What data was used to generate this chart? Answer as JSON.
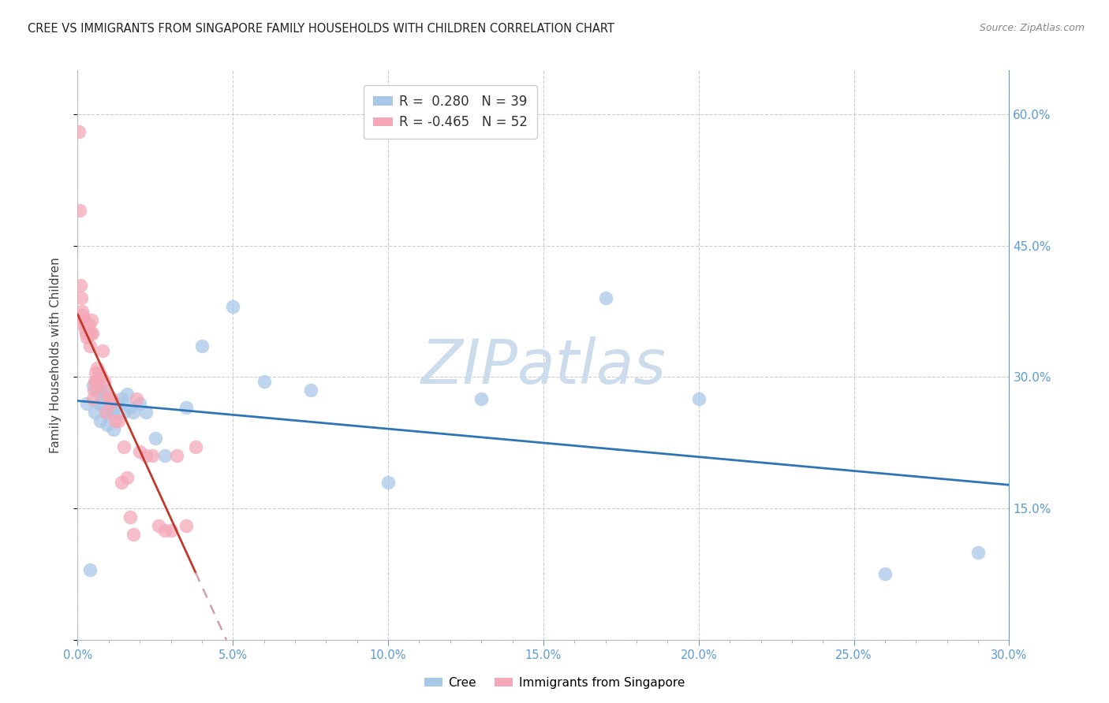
{
  "title": "CREE VS IMMIGRANTS FROM SINGAPORE FAMILY HOUSEHOLDS WITH CHILDREN CORRELATION CHART",
  "source": "Source: ZipAtlas.com",
  "ylabel": "Family Households with Children",
  "xlim": [
    0.0,
    30.0
  ],
  "ylim": [
    0.0,
    65.0
  ],
  "cree_color": "#a8c8e8",
  "singapore_color": "#f4a8b8",
  "cree_line_color": "#2e75b6",
  "singapore_line_color": "#c0392b",
  "extrapolation_color": "#d0a0a8",
  "watermark": "ZIPatlas",
  "watermark_color": "#ccdcec",
  "background_color": "#ffffff",
  "grid_color": "#cccccc",
  "axis_color": "#5b9bd5",
  "title_color": "#222222",
  "source_color": "#888888",
  "legend_r1": "R =  0.280",
  "legend_n1": "N = 39",
  "legend_r2": "R = -0.465",
  "legend_n2": "N = 52",
  "cree_label": "Cree",
  "singapore_label": "Immigrants from Singapore",
  "cree_points_x": [
    0.3,
    0.4,
    0.5,
    0.55,
    0.6,
    0.65,
    0.7,
    0.72,
    0.75,
    0.8,
    0.85,
    0.9,
    0.95,
    1.0,
    1.05,
    1.1,
    1.15,
    1.2,
    1.3,
    1.4,
    1.5,
    1.6,
    1.7,
    1.8,
    2.0,
    2.2,
    2.5,
    2.8,
    3.5,
    4.0,
    5.0,
    6.0,
    7.5,
    10.0,
    13.0,
    17.0,
    20.0,
    26.0,
    29.0
  ],
  "cree_points_y": [
    27.0,
    8.0,
    29.0,
    26.0,
    28.5,
    29.0,
    27.0,
    25.0,
    28.0,
    27.0,
    28.5,
    26.0,
    24.5,
    27.5,
    27.0,
    26.0,
    24.0,
    26.5,
    27.0,
    27.5,
    26.0,
    28.0,
    26.5,
    26.0,
    27.0,
    26.0,
    23.0,
    21.0,
    26.5,
    33.5,
    38.0,
    29.5,
    28.5,
    18.0,
    27.5,
    39.0,
    27.5,
    7.5,
    10.0
  ],
  "singapore_points_x": [
    0.05,
    0.07,
    0.1,
    0.12,
    0.14,
    0.16,
    0.18,
    0.2,
    0.22,
    0.25,
    0.27,
    0.3,
    0.32,
    0.35,
    0.37,
    0.4,
    0.42,
    0.45,
    0.47,
    0.5,
    0.52,
    0.55,
    0.58,
    0.6,
    0.62,
    0.65,
    0.7,
    0.75,
    0.8,
    0.85,
    0.9,
    0.95,
    1.0,
    1.05,
    1.1,
    1.2,
    1.3,
    1.4,
    1.5,
    1.6,
    1.7,
    1.8,
    1.9,
    2.0,
    2.2,
    2.4,
    2.6,
    2.8,
    3.0,
    3.2,
    3.5,
    3.8
  ],
  "singapore_points_y": [
    58.0,
    49.0,
    40.5,
    39.0,
    37.5,
    37.0,
    36.5,
    36.0,
    36.5,
    35.5,
    35.0,
    34.5,
    35.5,
    35.0,
    36.0,
    33.5,
    35.0,
    36.5,
    35.0,
    27.5,
    28.5,
    29.5,
    30.5,
    29.5,
    31.0,
    29.0,
    30.5,
    30.0,
    33.0,
    29.5,
    26.0,
    28.0,
    27.5,
    27.0,
    27.5,
    25.0,
    25.0,
    18.0,
    22.0,
    18.5,
    14.0,
    12.0,
    27.5,
    21.5,
    21.0,
    21.0,
    13.0,
    12.5,
    12.5,
    21.0,
    13.0,
    22.0
  ]
}
